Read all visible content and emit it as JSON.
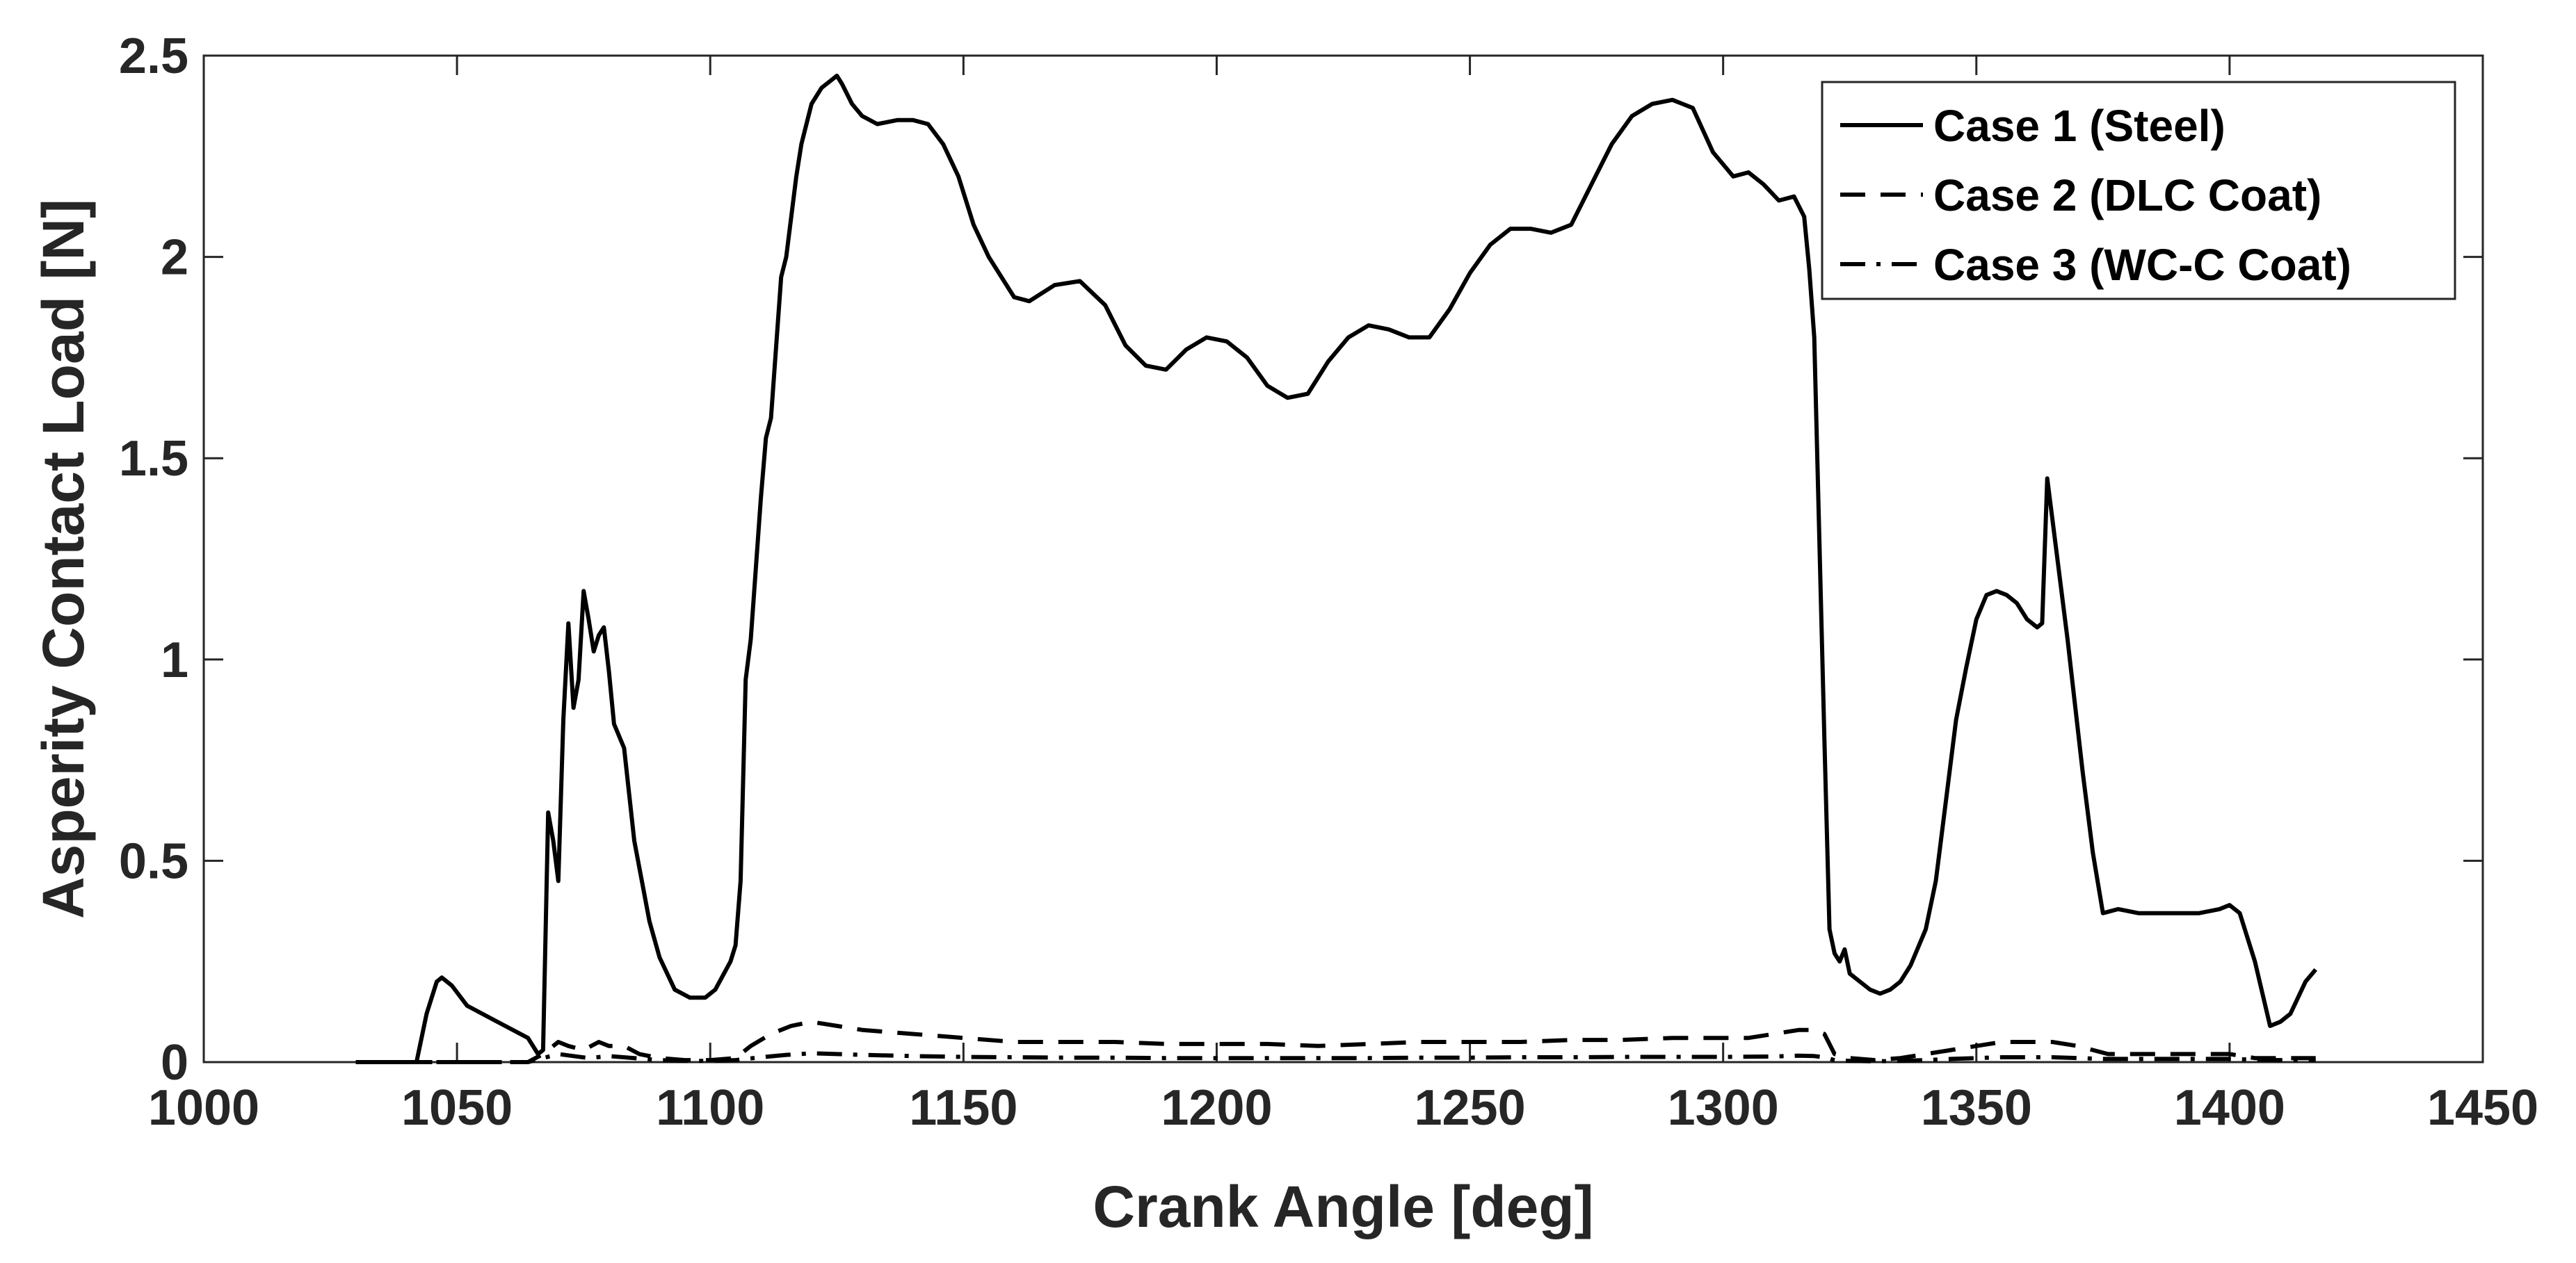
{
  "chart_data": {
    "type": "line",
    "xlabel": "Crank Angle [deg]",
    "ylabel": "Asperity Contact Load [N]",
    "xlim": [
      1000,
      1450
    ],
    "ylim": [
      0,
      2.5
    ],
    "xticks": [
      "1000",
      "1050",
      "1100",
      "1150",
      "1200",
      "1250",
      "1300",
      "1350",
      "1400",
      "1450"
    ],
    "yticks": [
      "0",
      "0.5",
      "1",
      "1.5",
      "2",
      "2.5"
    ],
    "grid": false,
    "legend_position": "top-right",
    "series": [
      {
        "name": "Case 1 (Steel)",
        "style": "solid",
        "color": "#000000",
        "x": [
          1030,
          1042,
          1044,
          1046,
          1047,
          1049,
          1052,
          1058,
          1064,
          1066,
          1067,
          1068,
          1069,
          1070,
          1071,
          1072,
          1073,
          1074,
          1075,
          1076,
          1077,
          1078,
          1079,
          1080,
          1081,
          1083,
          1085,
          1088,
          1090,
          1093,
          1096,
          1099,
          1101,
          1104,
          1105,
          1106,
          1107,
          1108,
          1110,
          1111,
          1112,
          1114,
          1115,
          1117,
          1118,
          1120,
          1122,
          1124,
          1125,
          1126,
          1128,
          1130,
          1133,
          1137,
          1140,
          1143,
          1146,
          1149,
          1152,
          1155,
          1160,
          1163,
          1168,
          1173,
          1178,
          1182,
          1186,
          1190,
          1194,
          1198,
          1202,
          1206,
          1210,
          1214,
          1218,
          1222,
          1226,
          1230,
          1234,
          1238,
          1242,
          1246,
          1250,
          1254,
          1258,
          1262,
          1266,
          1270,
          1274,
          1278,
          1282,
          1286,
          1290,
          1294,
          1298,
          1302,
          1305,
          1308,
          1311,
          1314,
          1316,
          1317,
          1318,
          1319,
          1320,
          1321,
          1322,
          1323,
          1324,
          1325,
          1327,
          1329,
          1331,
          1333,
          1335,
          1337,
          1340,
          1342,
          1344,
          1346,
          1348,
          1350,
          1352,
          1354,
          1356,
          1358,
          1360,
          1362,
          1363,
          1364,
          1365,
          1368,
          1371,
          1373,
          1375,
          1378,
          1382,
          1386,
          1390,
          1394,
          1398,
          1400,
          1402,
          1405,
          1408,
          1410,
          1412,
          1415,
          1417
        ],
        "y": [
          0,
          0,
          0.12,
          0.2,
          0.21,
          0.19,
          0.14,
          0.1,
          0.06,
          0.02,
          0.03,
          0.62,
          0.55,
          0.45,
          0.85,
          1.09,
          0.88,
          0.95,
          1.17,
          1.1,
          1.02,
          1.06,
          1.08,
          0.97,
          0.84,
          0.78,
          0.55,
          0.35,
          0.26,
          0.18,
          0.16,
          0.16,
          0.18,
          0.25,
          0.29,
          0.45,
          0.95,
          1.05,
          1.4,
          1.55,
          1.6,
          1.95,
          2.0,
          2.2,
          2.28,
          2.38,
          2.42,
          2.44,
          2.45,
          2.43,
          2.38,
          2.35,
          2.33,
          2.34,
          2.34,
          2.33,
          2.28,
          2.2,
          2.08,
          2.0,
          1.9,
          1.89,
          1.93,
          1.94,
          1.88,
          1.78,
          1.73,
          1.72,
          1.77,
          1.8,
          1.79,
          1.75,
          1.68,
          1.65,
          1.66,
          1.74,
          1.8,
          1.83,
          1.82,
          1.8,
          1.8,
          1.87,
          1.96,
          2.03,
          2.07,
          2.07,
          2.06,
          2.08,
          2.18,
          2.28,
          2.35,
          2.38,
          2.39,
          2.37,
          2.26,
          2.2,
          2.21,
          2.18,
          2.14,
          2.15,
          2.1,
          1.97,
          1.8,
          1.3,
          0.8,
          0.33,
          0.27,
          0.25,
          0.28,
          0.22,
          0.2,
          0.18,
          0.17,
          0.18,
          0.2,
          0.24,
          0.33,
          0.45,
          0.65,
          0.85,
          0.98,
          1.1,
          1.16,
          1.17,
          1.16,
          1.14,
          1.1,
          1.08,
          1.09,
          1.45,
          1.35,
          1.05,
          0.72,
          0.52,
          0.37,
          0.38,
          0.37,
          0.37,
          0.37,
          0.37,
          0.38,
          0.39,
          0.37,
          0.25,
          0.09,
          0.1,
          0.12,
          0.2,
          0.23
        ]
      },
      {
        "name": "Case 2 (DLC Coat)",
        "style": "dashed",
        "color": "#000000",
        "x": [
          1030,
          1064,
          1067,
          1070,
          1072,
          1075,
          1078,
          1080,
          1083,
          1086,
          1090,
          1095,
          1100,
          1105,
          1108,
          1112,
          1116,
          1120,
          1125,
          1130,
          1140,
          1150,
          1160,
          1170,
          1180,
          1190,
          1200,
          1210,
          1220,
          1230,
          1240,
          1250,
          1260,
          1270,
          1280,
          1290,
          1300,
          1305,
          1310,
          1315,
          1318,
          1320,
          1322,
          1325,
          1330,
          1335,
          1340,
          1345,
          1350,
          1355,
          1360,
          1365,
          1370,
          1373,
          1376,
          1380,
          1385,
          1390,
          1395,
          1400,
          1405,
          1410,
          1415,
          1417
        ],
        "y": [
          0,
          0,
          0.02,
          0.05,
          0.04,
          0.03,
          0.05,
          0.04,
          0.04,
          0.02,
          0.01,
          0.005,
          0.005,
          0.01,
          0.04,
          0.07,
          0.09,
          0.1,
          0.09,
          0.08,
          0.07,
          0.06,
          0.05,
          0.05,
          0.05,
          0.045,
          0.045,
          0.045,
          0.04,
          0.045,
          0.05,
          0.05,
          0.05,
          0.055,
          0.055,
          0.06,
          0.06,
          0.06,
          0.07,
          0.08,
          0.08,
          0.07,
          0.02,
          0.01,
          0.005,
          0.01,
          0.02,
          0.03,
          0.04,
          0.05,
          0.05,
          0.05,
          0.04,
          0.03,
          0.02,
          0.02,
          0.02,
          0.02,
          0.02,
          0.02,
          0.01,
          0.01,
          0.01,
          0.01
        ]
      },
      {
        "name": "Case 3 (WC-C Coat)",
        "style": "dashdot",
        "color": "#000000",
        "x": [
          1030,
          1064,
          1067,
          1070,
          1073,
          1076,
          1080,
          1085,
          1090,
          1095,
          1100,
          1105,
          1110,
          1115,
          1120,
          1125,
          1130,
          1140,
          1150,
          1160,
          1170,
          1180,
          1190,
          1200,
          1210,
          1220,
          1230,
          1240,
          1250,
          1260,
          1270,
          1280,
          1290,
          1300,
          1310,
          1315,
          1318,
          1320,
          1322,
          1325,
          1330,
          1335,
          1340,
          1345,
          1350,
          1355,
          1360,
          1365,
          1370,
          1375,
          1380,
          1385,
          1390,
          1395,
          1400,
          1405,
          1410,
          1415,
          1417
        ],
        "y": [
          0,
          0,
          0.01,
          0.02,
          0.015,
          0.01,
          0.015,
          0.01,
          0.005,
          0.003,
          0.003,
          0.005,
          0.012,
          0.018,
          0.022,
          0.02,
          0.018,
          0.015,
          0.013,
          0.012,
          0.011,
          0.011,
          0.01,
          0.01,
          0.01,
          0.01,
          0.01,
          0.011,
          0.011,
          0.012,
          0.012,
          0.013,
          0.013,
          0.013,
          0.014,
          0.016,
          0.015,
          0.012,
          0.005,
          0.003,
          0.002,
          0.003,
          0.005,
          0.008,
          0.01,
          0.012,
          0.012,
          0.012,
          0.01,
          0.008,
          0.008,
          0.008,
          0.008,
          0.008,
          0.008,
          0.006,
          0.005,
          0.005,
          0.005
        ]
      }
    ]
  }
}
